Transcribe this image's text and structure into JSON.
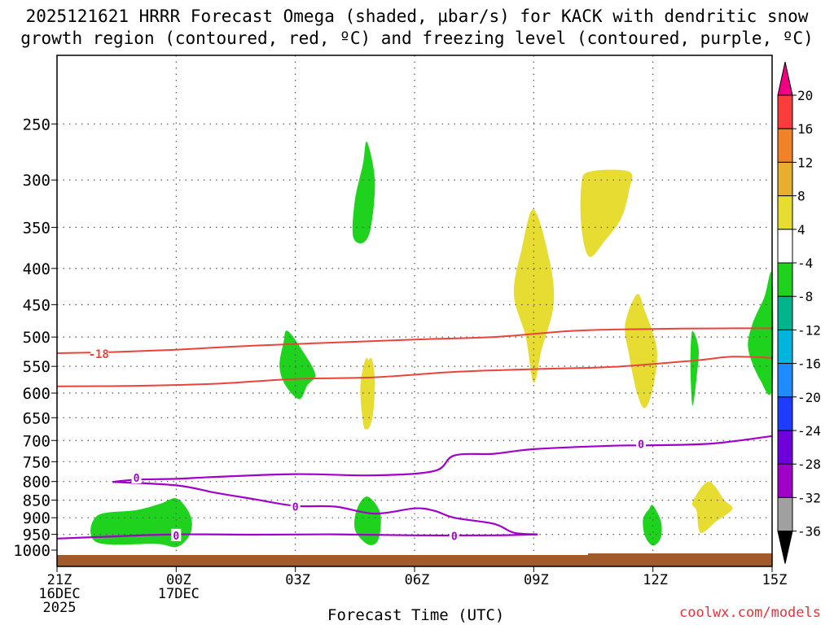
{
  "title_line1": "2025121621 HRRR Forecast Omega (shaded, µbar/s) for KACK with dendritic snow",
  "title_line2": "growth region (contoured, red, ºC) and freezing level (contoured, purple, ºC)",
  "credit": "coolwx.com/models",
  "chart_data": {
    "type": "time-height cross section",
    "xlabel": "Forecast Time (UTC)",
    "ylabel": "",
    "x_range_hours": [
      0,
      18
    ],
    "y_range_hpa": [
      1000,
      200
    ],
    "x_ticks": [
      {
        "hour": 0,
        "lines": [
          "21Z",
          "16DEC",
          "2025"
        ]
      },
      {
        "hour": 3,
        "lines": [
          "00Z",
          "17DEC"
        ]
      },
      {
        "hour": 6,
        "lines": [
          "03Z"
        ]
      },
      {
        "hour": 9,
        "lines": [
          "06Z"
        ]
      },
      {
        "hour": 12,
        "lines": [
          "09Z"
        ]
      },
      {
        "hour": 15,
        "lines": [
          "12Z"
        ]
      },
      {
        "hour": 18,
        "lines": [
          "15Z"
        ]
      }
    ],
    "y_ticks": [
      250,
      300,
      350,
      400,
      450,
      500,
      550,
      600,
      650,
      700,
      750,
      800,
      850,
      900,
      950,
      1000
    ],
    "colorbar": {
      "labels": [
        "20",
        "16",
        "12",
        "8",
        "4",
        "-4",
        "-8",
        "-12",
        "-16",
        "-20",
        "-24",
        "-28",
        "-32",
        "-36"
      ],
      "colors": [
        "#e5e5e5",
        "#9f9f9f",
        "#a000c8",
        "#6e00dc",
        "#1e3cff",
        "#00a0ff",
        "#00c8c8",
        "#00dc00",
        "#ffffff",
        "#e6dc32",
        "#e6af2d",
        "#f08228",
        "#fa3c3c",
        "#f00082"
      ]
    },
    "omega_regions": [
      {
        "sign": "negative",
        "value": -6,
        "points": [
          [
            1.0,
            895
          ],
          [
            2.0,
            878
          ],
          [
            2.6,
            860
          ],
          [
            3.0,
            845
          ],
          [
            3.3,
            880
          ],
          [
            3.4,
            920
          ],
          [
            3.3,
            960
          ],
          [
            3.0,
            990
          ],
          [
            2.5,
            980
          ],
          [
            1.0,
            975
          ]
        ]
      },
      {
        "sign": "negative",
        "value": -6,
        "points": [
          [
            7.8,
            265
          ],
          [
            8.0,
            300
          ],
          [
            7.9,
            350
          ],
          [
            7.7,
            368
          ],
          [
            7.45,
            360
          ],
          [
            7.5,
            320
          ],
          [
            7.7,
            285
          ]
        ]
      },
      {
        "sign": "negative",
        "value": -6,
        "points": [
          [
            5.8,
            490
          ],
          [
            6.2,
            525
          ],
          [
            6.5,
            565
          ],
          [
            6.3,
            585
          ],
          [
            6.1,
            612
          ],
          [
            5.75,
            585
          ],
          [
            5.6,
            550
          ],
          [
            5.7,
            510
          ]
        ]
      },
      {
        "sign": "negative",
        "value": -6,
        "points": [
          [
            7.8,
            840
          ],
          [
            8.1,
            875
          ],
          [
            8.15,
            925
          ],
          [
            8.05,
            975
          ],
          [
            7.8,
            980
          ],
          [
            7.5,
            935
          ],
          [
            7.55,
            875
          ]
        ]
      },
      {
        "sign": "negative",
        "value": -6,
        "points": [
          [
            15.0,
            865
          ],
          [
            15.2,
            910
          ],
          [
            15.2,
            960
          ],
          [
            15.0,
            985
          ],
          [
            14.8,
            955
          ],
          [
            14.75,
            905
          ],
          [
            14.9,
            875
          ]
        ]
      },
      {
        "sign": "negative",
        "value": -6,
        "points": [
          [
            16.0,
            490
          ],
          [
            16.15,
            520
          ],
          [
            16.1,
            570
          ],
          [
            16.0,
            625
          ],
          [
            15.95,
            570
          ],
          [
            15.95,
            520
          ]
        ]
      },
      {
        "sign": "negative",
        "value": -6,
        "points": [
          [
            17.8,
            440
          ],
          [
            18.0,
            410
          ],
          [
            18.0,
            590
          ],
          [
            17.7,
            575
          ],
          [
            17.4,
            520
          ],
          [
            17.5,
            480
          ]
        ]
      },
      {
        "sign": "positive",
        "value": 6,
        "points": [
          [
            7.9,
            535
          ],
          [
            8.0,
            575
          ],
          [
            7.95,
            645
          ],
          [
            7.8,
            675
          ],
          [
            7.7,
            620
          ],
          [
            7.7,
            570
          ]
        ]
      },
      {
        "sign": "positive",
        "value": 6,
        "points": [
          [
            12.0,
            330
          ],
          [
            12.4,
            390
          ],
          [
            12.5,
            450
          ],
          [
            12.2,
            520
          ],
          [
            12.0,
            580
          ],
          [
            11.8,
            500
          ],
          [
            11.5,
            435
          ],
          [
            11.7,
            375
          ]
        ]
      },
      {
        "sign": "positive",
        "value": 6,
        "points": [
          [
            13.4,
            292
          ],
          [
            14.4,
            292
          ],
          [
            14.4,
            310
          ],
          [
            14.2,
            340
          ],
          [
            13.8,
            365
          ],
          [
            13.4,
            385
          ],
          [
            13.2,
            350
          ],
          [
            13.2,
            305
          ]
        ]
      },
      {
        "sign": "positive",
        "value": 6,
        "points": [
          [
            14.6,
            435
          ],
          [
            14.8,
            460
          ],
          [
            15.1,
            520
          ],
          [
            15.0,
            590
          ],
          [
            14.8,
            630
          ],
          [
            14.6,
            600
          ],
          [
            14.4,
            530
          ],
          [
            14.3,
            480
          ]
        ]
      },
      {
        "sign": "positive",
        "value": 6,
        "points": [
          [
            7.8,
            535
          ],
          [
            7.95,
            580
          ],
          [
            7.9,
            640
          ],
          [
            7.75,
            675
          ],
          [
            7.65,
            620
          ],
          [
            7.65,
            575
          ]
        ]
      },
      {
        "sign": "positive",
        "value": 6,
        "points": [
          [
            16.4,
            800
          ],
          [
            16.8,
            850
          ],
          [
            17.0,
            875
          ],
          [
            16.6,
            910
          ],
          [
            16.2,
            945
          ],
          [
            16.1,
            880
          ],
          [
            16.0,
            855
          ]
        ]
      }
    ],
    "dgz_contours": [
      {
        "name": "-18C",
        "color": "#e8443c",
        "label": "-18",
        "points": [
          [
            0,
            527
          ],
          [
            1.4,
            525
          ],
          [
            3,
            521
          ],
          [
            5,
            514
          ],
          [
            7,
            509
          ],
          [
            9,
            504
          ],
          [
            11,
            500
          ],
          [
            13,
            490
          ],
          [
            15,
            487
          ],
          [
            17,
            486
          ],
          [
            18,
            486
          ]
        ]
      },
      {
        "name": "-12C",
        "color": "#e8443c",
        "label": "",
        "points": [
          [
            0,
            587
          ],
          [
            2,
            586
          ],
          [
            4,
            582
          ],
          [
            6,
            573
          ],
          [
            8,
            570
          ],
          [
            10,
            560
          ],
          [
            12,
            555
          ],
          [
            14,
            551
          ],
          [
            16,
            540
          ],
          [
            17,
            533
          ],
          [
            18,
            535
          ]
        ]
      }
    ],
    "freezing_contours": [
      {
        "name": "0C lower",
        "color": "#a000c8",
        "label": "0",
        "points": [
          [
            0,
            963
          ],
          [
            1.5,
            956
          ],
          [
            3,
            950
          ],
          [
            5,
            951
          ],
          [
            7,
            950
          ],
          [
            9,
            953
          ],
          [
            11,
            953
          ],
          [
            12.1,
            950
          ]
        ]
      },
      {
        "name": "0C upper",
        "color": "#a000c8",
        "label": "0",
        "points": [
          [
            1.4,
            801
          ],
          [
            2,
            795
          ],
          [
            3,
            793
          ],
          [
            4,
            788
          ],
          [
            6,
            781
          ],
          [
            8,
            784
          ],
          [
            9.5,
            773
          ],
          [
            10,
            735
          ],
          [
            11,
            731
          ],
          [
            12,
            720
          ],
          [
            14,
            712
          ],
          [
            15,
            711
          ],
          [
            16.5,
            707
          ],
          [
            18,
            690
          ]
        ]
      },
      {
        "name": "0C fold",
        "color": "#a000c8",
        "label": "0",
        "points": [
          [
            1.4,
            801
          ],
          [
            3,
            810
          ],
          [
            4,
            830
          ],
          [
            5,
            848
          ],
          [
            6,
            866
          ],
          [
            7,
            868
          ],
          [
            8,
            888
          ],
          [
            9,
            873
          ],
          [
            9.5,
            880
          ],
          [
            10,
            900
          ],
          [
            11,
            918
          ],
          [
            11.5,
            945
          ],
          [
            12.1,
            950
          ]
        ]
      }
    ]
  }
}
